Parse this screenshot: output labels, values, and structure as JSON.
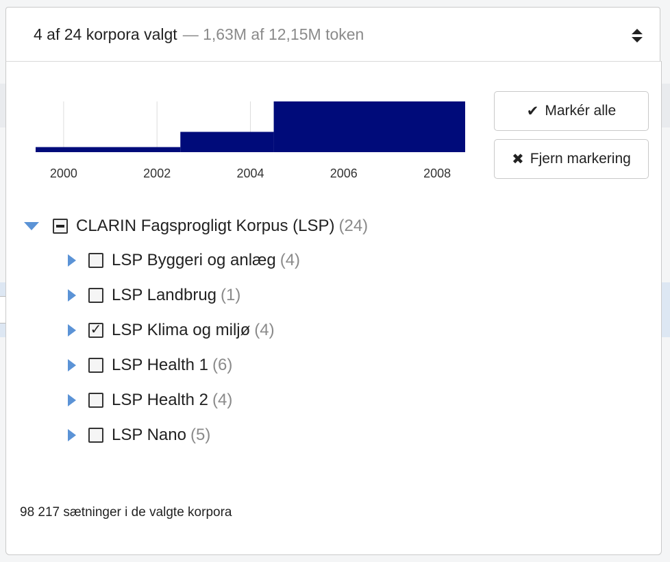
{
  "selector": {
    "count_text": "4 af 24 korpora valgt",
    "token_text": "— 1,63M af 12,15M token"
  },
  "buttons": {
    "select_all": "Markér alle",
    "deselect_all": "Fjern markering"
  },
  "chart_data": {
    "type": "area",
    "x_ticks": [
      "2000",
      "2002",
      "2004",
      "2006",
      "2008"
    ],
    "x_range": [
      1999.4,
      2008.6
    ],
    "steps": [
      {
        "from": 1999.4,
        "to": 2002.5,
        "value": 0.1
      },
      {
        "from": 2002.5,
        "to": 2004.5,
        "value": 0.4
      },
      {
        "from": 2004.5,
        "to": 2008.6,
        "value": 1.0
      }
    ],
    "y_range": [
      0,
      1
    ],
    "fill_color": "#000b7a",
    "grid": true
  },
  "tree": {
    "root": {
      "label": "CLARIN Fagsprogligt Korpus (LSP)",
      "count": "(24)",
      "state": "partial",
      "expanded": true
    },
    "children": [
      {
        "label": "LSP Byggeri og anlæg",
        "count": "(4)",
        "checked": false
      },
      {
        "label": "LSP Landbrug",
        "count": "(1)",
        "checked": false
      },
      {
        "label": "LSP Klima og miljø",
        "count": "(4)",
        "checked": true
      },
      {
        "label": "LSP Health 1",
        "count": "(6)",
        "checked": false
      },
      {
        "label": "LSP Health 2",
        "count": "(4)",
        "checked": false
      },
      {
        "label": "LSP Nano",
        "count": "(5)",
        "checked": false
      }
    ]
  },
  "footer": {
    "sentences_text": "98 217 sætninger i de valgte korpora"
  },
  "icons": {
    "sort": "sort-icon",
    "check": "check-icon",
    "close": "close-icon",
    "expand": "triangle-down-icon",
    "collapsed": "triangle-right-icon"
  }
}
